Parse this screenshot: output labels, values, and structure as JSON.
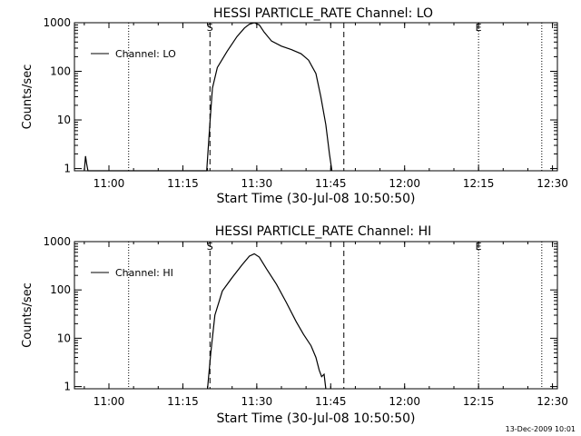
{
  "chart_data": [
    {
      "type": "line",
      "title": "HESSI PARTICLE_RATE Channel: LO",
      "xlabel": "Start Time (30-Jul-08 10:50:50)",
      "ylabel": "Counts/sec",
      "yscale": "log",
      "ylim": [
        0.9,
        1000
      ],
      "xlim": [
        "10:53:00",
        "12:31:00"
      ],
      "x_ticks": [
        "11:00",
        "11:15",
        "11:30",
        "11:45",
        "12:00",
        "12:15",
        "12:30"
      ],
      "y_ticks": [
        "1",
        "10",
        "100",
        "1000"
      ],
      "legend": {
        "label": "Channel: LO",
        "position": "top-left"
      },
      "markers": [
        {
          "label": "S",
          "time": "11:20:30",
          "style": "dashed"
        },
        {
          "label": "",
          "time": "11:47:40",
          "style": "dashed"
        },
        {
          "label": "E",
          "time": "12:15:00",
          "style": "dotted"
        },
        {
          "label": "",
          "time": "11:04:00",
          "style": "dotted"
        },
        {
          "label": "",
          "time": "12:27:50",
          "style": "dotted"
        }
      ],
      "series": [
        {
          "name": "Channel: LO",
          "x": [
            "10:55:00",
            "10:55:15",
            "10:55:30",
            "10:55:45",
            "11:19:50",
            "11:20:30",
            "11:21:00",
            "11:22:00",
            "11:24:00",
            "11:26:00",
            "11:27:30",
            "11:28:30",
            "11:29:30",
            "11:30:30",
            "11:31:30",
            "11:33:00",
            "11:35:00",
            "11:37:00",
            "11:39:00",
            "11:40:30",
            "11:42:00",
            "11:43:00",
            "11:44:00",
            "11:44:45",
            "11:45:15"
          ],
          "values": [
            0.9,
            1.8,
            1.2,
            0.9,
            0.9,
            9,
            45,
            120,
            260,
            520,
            780,
            930,
            1000,
            900,
            640,
            420,
            330,
            280,
            230,
            170,
            90,
            30,
            8,
            2,
            0.9
          ]
        }
      ]
    },
    {
      "type": "line",
      "title": "HESSI PARTICLE_RATE Channel: HI",
      "xlabel": "Start Time (30-Jul-08 10:50:50)",
      "ylabel": "Counts/sec",
      "yscale": "log",
      "ylim": [
        0.9,
        1000
      ],
      "xlim": [
        "10:53:00",
        "12:31:00"
      ],
      "x_ticks": [
        "11:00",
        "11:15",
        "11:30",
        "11:45",
        "12:00",
        "12:15",
        "12:30"
      ],
      "y_ticks": [
        "1",
        "10",
        "100",
        "1000"
      ],
      "legend": {
        "label": "Channel: HI",
        "position": "top-left"
      },
      "markers": [
        {
          "label": "S",
          "time": "11:20:30",
          "style": "dashed"
        },
        {
          "label": "",
          "time": "11:47:40",
          "style": "dashed"
        },
        {
          "label": "E",
          "time": "12:15:00",
          "style": "dotted"
        },
        {
          "label": "",
          "time": "11:04:00",
          "style": "dotted"
        },
        {
          "label": "",
          "time": "12:27:50",
          "style": "dotted"
        }
      ],
      "series": [
        {
          "name": "Channel: HI",
          "x": [
            "11:20:00",
            "11:20:40",
            "11:21:30",
            "11:23:00",
            "11:25:00",
            "11:27:00",
            "11:28:30",
            "11:29:30",
            "11:30:30",
            "11:32:00",
            "11:34:00",
            "11:36:00",
            "11:38:00",
            "11:39:30",
            "11:41:00",
            "11:42:00",
            "11:42:40",
            "11:43:10",
            "11:43:40",
            "11:44:00"
          ],
          "values": [
            0.9,
            5,
            30,
            95,
            180,
            330,
            500,
            560,
            480,
            270,
            130,
            55,
            22,
            12,
            7,
            4,
            2.2,
            1.6,
            1.8,
            0.9
          ]
        }
      ]
    }
  ],
  "footer": {
    "timestamp": "13-Dec-2009 10:01"
  }
}
